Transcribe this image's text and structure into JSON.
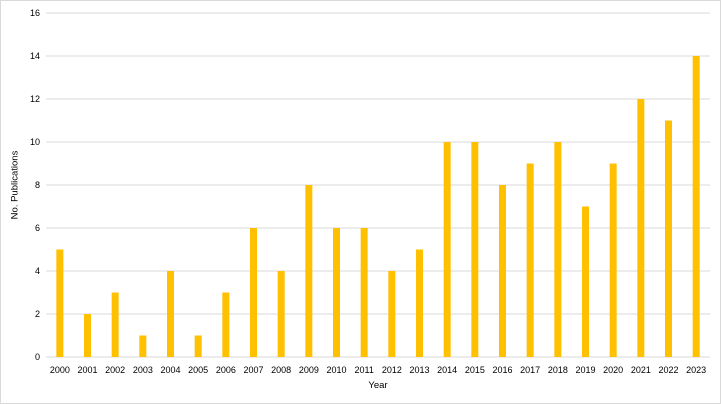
{
  "chart_data": {
    "type": "bar",
    "title": "",
    "xlabel": "Year",
    "ylabel": "No. Publications",
    "ylim": [
      0,
      16
    ],
    "yticks": [
      0,
      2,
      4,
      6,
      8,
      10,
      12,
      14,
      16
    ],
    "grid": true,
    "legend": "none",
    "bar_color": "#FFC000",
    "categories": [
      "2000",
      "2001",
      "2002",
      "2003",
      "2004",
      "2005",
      "2006",
      "2007",
      "2008",
      "2009",
      "2010",
      "2011",
      "2012",
      "2013",
      "2014",
      "2015",
      "2016",
      "2017",
      "2018",
      "2019",
      "2020",
      "2021",
      "2022",
      "2023"
    ],
    "values": [
      5,
      2,
      3,
      1,
      4,
      1,
      3,
      6,
      4,
      8,
      6,
      6,
      4,
      5,
      10,
      10,
      8,
      9,
      10,
      7,
      9,
      12,
      11,
      14
    ]
  }
}
